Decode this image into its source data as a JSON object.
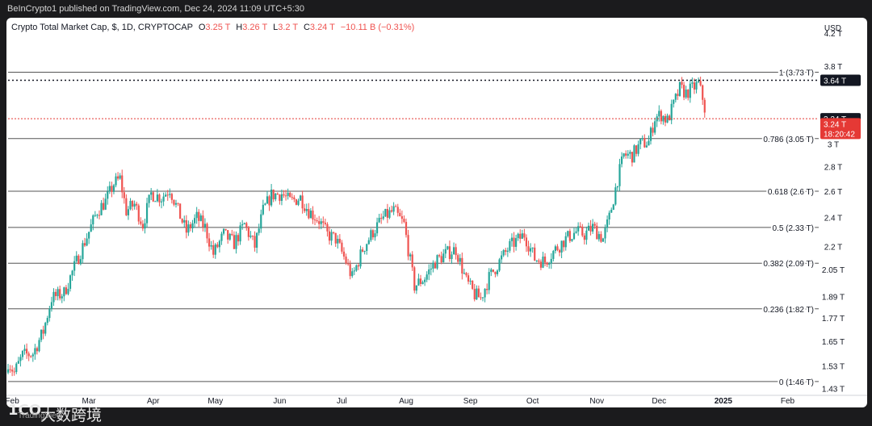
{
  "publish_line": "BeInCrypto1 published on TradingView.com, Dec 24, 2024 11:09 UTC+5:30",
  "legend": {
    "symbol": "Crypto Total Market Cap, $, 1D, CRYPTOCAP",
    "o_label": "O",
    "o_val": "3.25 T",
    "h_label": "H",
    "h_val": "3.26 T",
    "l_label": "L",
    "l_val": "3.2 T",
    "c_label": "C",
    "c_val": "3.24 T",
    "change": "−10.11 B (−0.31%)"
  },
  "watermark": {
    "logo": "1CO",
    "text": "大数跨境",
    "tv": "TradingView"
  },
  "colors": {
    "up": "#26a69a",
    "down": "#ef5350",
    "fib": "#555555",
    "price": "#e53935"
  },
  "chart_data": {
    "type": "candlestick",
    "title": "Crypto Total Market Cap, $, 1D, CRYPTOCAP",
    "currency_label": "USD",
    "y_scale": "log",
    "ylim": [
      1.4,
      4.4
    ],
    "grid": false,
    "x_labels": [
      "Feb",
      "Mar",
      "Apr",
      "May",
      "Jun",
      "Jul",
      "Aug",
      "Sep",
      "Oct",
      "Nov",
      "Dec",
      "2025",
      "Feb"
    ],
    "y_ticks": [
      "4.2 T",
      "3.8 T",
      "3 T",
      "2.8 T",
      "2.6 T",
      "2.4 T",
      "2.2 T",
      "2.05 T",
      "1.89 T",
      "1.77 T",
      "1.65 T",
      "1.53 T",
      "1.43 T"
    ],
    "y_tick_values": [
      4.2,
      3.8,
      3.0,
      2.8,
      2.6,
      2.4,
      2.2,
      2.05,
      1.89,
      1.77,
      1.65,
      1.53,
      1.43
    ],
    "fib_levels": [
      {
        "ratio": "1",
        "value": 3.73,
        "label": "1 (3.73 T)"
      },
      {
        "ratio": "0.786",
        "value": 3.05,
        "label": "0.786 (3.05 T)"
      },
      {
        "ratio": "0.618",
        "value": 2.6,
        "label": "0.618 (2.6 T)"
      },
      {
        "ratio": "0.5",
        "value": 2.33,
        "label": "0.5 (2.33 T)"
      },
      {
        "ratio": "0.382",
        "value": 2.09,
        "label": "0.382 (2.09 T)"
      },
      {
        "ratio": "0.236",
        "value": 1.82,
        "label": "0.236 (1.82 T)"
      },
      {
        "ratio": "0",
        "value": 1.46,
        "label": "0 (1.46 T)"
      }
    ],
    "markers": [
      {
        "label": "3.64 T",
        "value": 3.64,
        "style": "dotted-black"
      },
      {
        "label": "3.24 T",
        "value": 3.24,
        "style": "box-black"
      },
      {
        "label": "3.24 T",
        "sub": "18:20:42",
        "value": 3.19,
        "style": "box-red"
      }
    ],
    "price_line": 3.24,
    "close_path": [
      [
        "2024-01-22",
        1.55
      ],
      [
        "2024-01-25",
        1.5
      ],
      [
        "2024-01-29",
        1.58
      ],
      [
        "2024-02-03",
        1.59
      ],
      [
        "2024-02-08",
        1.7
      ],
      [
        "2024-02-12",
        1.88
      ],
      [
        "2024-02-18",
        1.91
      ],
      [
        "2024-02-24",
        2.1
      ],
      [
        "2024-03-01",
        2.3
      ],
      [
        "2024-03-05",
        2.45
      ],
      [
        "2024-03-09",
        2.52
      ],
      [
        "2024-03-13",
        2.66
      ],
      [
        "2024-03-16",
        2.7
      ],
      [
        "2024-03-19",
        2.45
      ],
      [
        "2024-03-23",
        2.5
      ],
      [
        "2024-03-27",
        2.35
      ],
      [
        "2024-03-31",
        2.58
      ],
      [
        "2024-04-05",
        2.55
      ],
      [
        "2024-04-09",
        2.62
      ],
      [
        "2024-04-13",
        2.45
      ],
      [
        "2024-04-17",
        2.3
      ],
      [
        "2024-04-22",
        2.4
      ],
      [
        "2024-04-26",
        2.33
      ],
      [
        "2024-04-30",
        2.15
      ],
      [
        "2024-05-05",
        2.28
      ],
      [
        "2024-05-10",
        2.22
      ],
      [
        "2024-05-15",
        2.35
      ],
      [
        "2024-05-20",
        2.2
      ],
      [
        "2024-05-24",
        2.45
      ],
      [
        "2024-05-28",
        2.57
      ],
      [
        "2024-06-02",
        2.58
      ],
      [
        "2024-06-06",
        2.52
      ],
      [
        "2024-06-11",
        2.55
      ],
      [
        "2024-06-15",
        2.45
      ],
      [
        "2024-06-20",
        2.38
      ],
      [
        "2024-06-24",
        2.28
      ],
      [
        "2024-06-28",
        2.25
      ],
      [
        "2024-07-03",
        2.1
      ],
      [
        "2024-07-06",
        2.0
      ],
      [
        "2024-07-11",
        2.18
      ],
      [
        "2024-07-16",
        2.3
      ],
      [
        "2024-07-21",
        2.4
      ],
      [
        "2024-07-26",
        2.45
      ],
      [
        "2024-07-31",
        2.35
      ],
      [
        "2024-08-05",
        1.95
      ],
      [
        "2024-08-10",
        2.0
      ],
      [
        "2024-08-15",
        2.1
      ],
      [
        "2024-08-20",
        2.15
      ],
      [
        "2024-08-25",
        2.18
      ],
      [
        "2024-08-30",
        1.98
      ],
      [
        "2024-09-03",
        1.9
      ],
      [
        "2024-09-06",
        1.88
      ],
      [
        "2024-09-10",
        2.0
      ],
      [
        "2024-09-15",
        2.1
      ],
      [
        "2024-09-20",
        2.2
      ],
      [
        "2024-09-27",
        2.28
      ],
      [
        "2024-10-02",
        2.12
      ],
      [
        "2024-10-07",
        2.1
      ],
      [
        "2024-10-12",
        2.18
      ],
      [
        "2024-10-17",
        2.25
      ],
      [
        "2024-10-22",
        2.3
      ],
      [
        "2024-10-26",
        2.28
      ],
      [
        "2024-10-30",
        2.33
      ],
      [
        "2024-11-04",
        2.25
      ],
      [
        "2024-11-07",
        2.4
      ],
      [
        "2024-11-11",
        2.7
      ],
      [
        "2024-11-14",
        2.9
      ],
      [
        "2024-11-18",
        2.9
      ],
      [
        "2024-11-22",
        3.0
      ],
      [
        "2024-11-26",
        3.02
      ],
      [
        "2024-11-29",
        3.25
      ],
      [
        "2024-12-02",
        3.28
      ],
      [
        "2024-12-05",
        3.22
      ],
      [
        "2024-12-08",
        3.38
      ],
      [
        "2024-12-11",
        3.55
      ],
      [
        "2024-12-14",
        3.5
      ],
      [
        "2024-12-17",
        3.55
      ],
      [
        "2024-12-20",
        3.6
      ],
      [
        "2024-12-22",
        3.45
      ],
      [
        "2024-12-24",
        3.24
      ]
    ]
  }
}
